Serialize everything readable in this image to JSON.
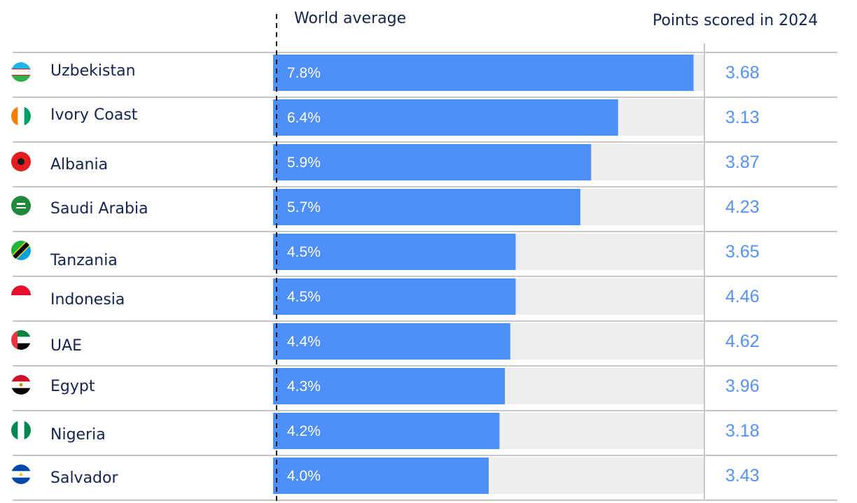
{
  "chart_data": {
    "type": "bar",
    "orientation": "horizontal",
    "headers": {
      "reference_label": "World average",
      "points_label": "Points scored in 2024"
    },
    "categories": [
      "Uzbekistan",
      "Ivory Coast",
      "Albania",
      "Saudi Arabia",
      "Tanzania",
      "Indonesia",
      "UAE",
      "Egypt",
      "Nigeria",
      "Salvador"
    ],
    "values": [
      7.8,
      6.4,
      5.9,
      5.7,
      4.5,
      4.5,
      4.4,
      4.3,
      4.2,
      4.0
    ],
    "value_labels": [
      "7.8%",
      "6.4%",
      "5.9%",
      "5.7%",
      "4.5%",
      "4.5%",
      "4.4%",
      "4.3%",
      "4.2%",
      "4.0%"
    ],
    "points": [
      "3.68",
      "3.13",
      "3.87",
      "4.23",
      "3.65",
      "4.46",
      "4.62",
      "3.96",
      "3.18",
      "3.43"
    ],
    "value_max": 8.0,
    "colors": {
      "bar": "#4f8ffa",
      "track": "#eeeeee",
      "label_text": "#13244f",
      "points_text": "#5591f4",
      "rule": "#c8c8c8"
    },
    "flags": [
      "uzbekistan-flag-icon",
      "ivory-coast-flag-icon",
      "albania-flag-icon",
      "saudi-arabia-flag-icon",
      "tanzania-flag-icon",
      "indonesia-flag-icon",
      "uae-flag-icon",
      "egypt-flag-icon",
      "nigeria-flag-icon",
      "salvador-flag-icon"
    ]
  }
}
